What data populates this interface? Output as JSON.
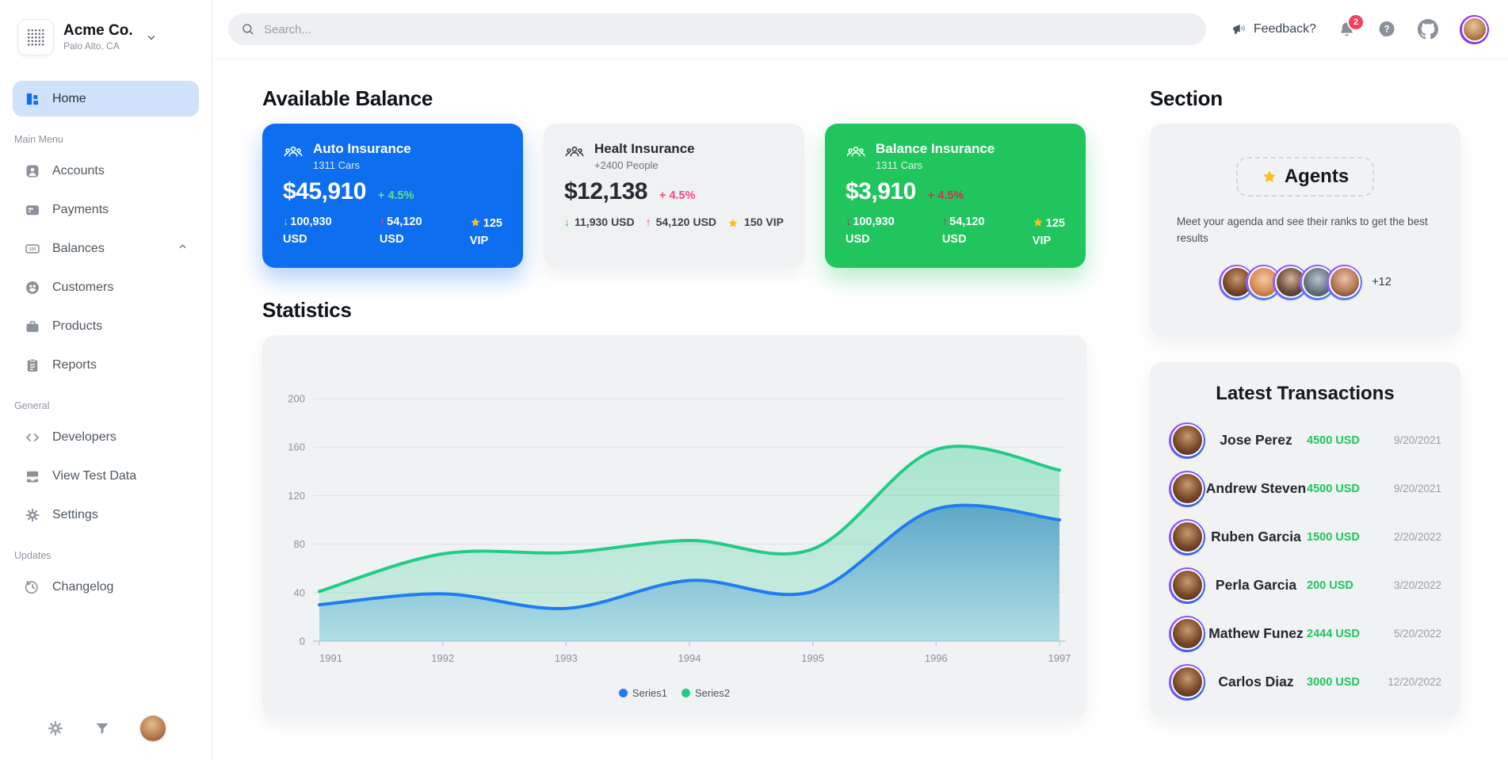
{
  "brand": {
    "name": "Acme Co.",
    "location": "Palo Alto, CA"
  },
  "topbar": {
    "search_placeholder": "Search...",
    "feedback_label": "Feedback?",
    "notification_count": "2"
  },
  "sidebar": {
    "home_label": "Home",
    "main_menu_label": "Main Menu",
    "general_label": "General",
    "updates_label": "Updates",
    "main_items": [
      "Accounts",
      "Payments",
      "Balances",
      "Customers",
      "Products",
      "Reports"
    ],
    "general_items": [
      "Developers",
      "View Test Data",
      "Settings"
    ],
    "updates_items": [
      "Changelog"
    ]
  },
  "glyphs": {
    "arrow_down": "↓",
    "arrow_up": "↑"
  },
  "balance": {
    "heading": "Available Balance",
    "cards": [
      {
        "title": "Auto Insurance",
        "subtitle": "1311 Cars",
        "amount": "$45,910",
        "pct": "+ 4.5%",
        "down_value": "100,930",
        "down_unit": "USD",
        "up_value": "54,120",
        "up_unit": "USD",
        "vip_value": "125",
        "vip_unit": "VIP"
      },
      {
        "title": "Healt Insurance",
        "subtitle": "+2400 People",
        "amount": "$12,138",
        "pct": "+ 4.5%",
        "down_value": "11,930",
        "down_unit": "USD",
        "up_value": "54,120",
        "up_unit": "USD",
        "vip_value": "150",
        "vip_unit": "VIP"
      },
      {
        "title": "Balance Insurance",
        "subtitle": "1311 Cars",
        "amount": "$3,910",
        "pct": "+ 4.5%",
        "down_value": "100,930",
        "down_unit": "USD",
        "up_value": "54,120",
        "up_unit": "USD",
        "vip_value": "125",
        "vip_unit": "VIP"
      }
    ]
  },
  "statistics": {
    "heading": "Statistics"
  },
  "chart_data": {
    "type": "area",
    "title": "Statistics",
    "x": [
      1991,
      1992,
      1993,
      1994,
      1995,
      1996,
      1997
    ],
    "series": [
      {
        "name": "Series1",
        "color": "#1e7df2",
        "values": [
          30,
          39,
          27,
          50,
          41,
          109,
          100
        ]
      },
      {
        "name": "Series2",
        "color": "#21cc87",
        "values": [
          41,
          72,
          73,
          83,
          76,
          158,
          141
        ]
      }
    ],
    "xlabel": "",
    "ylabel": "",
    "ylim": [
      0,
      200
    ],
    "yticks": [
      0,
      40,
      80,
      120,
      160,
      200
    ],
    "grid": true,
    "legend_position": "bottom"
  },
  "section": {
    "heading": "Section",
    "badge_title": "Agents",
    "description": "Meet your agenda and see their ranks to get the best results",
    "extra_count": "+12"
  },
  "transactions": {
    "title": "Latest Transactions",
    "rows": [
      {
        "name": "Jose Perez",
        "amount": "4500 USD",
        "date": "9/20/2021"
      },
      {
        "name": "Andrew Steven",
        "amount": "4500 USD",
        "date": "9/20/2021"
      },
      {
        "name": "Ruben Garcia",
        "amount": "1500 USD",
        "date": "2/20/2022"
      },
      {
        "name": "Perla Garcia",
        "amount": "200 USD",
        "date": "3/20/2022"
      },
      {
        "name": "Mathew Funez",
        "amount": "2444 USD",
        "date": "5/20/2022"
      },
      {
        "name": "Carlos Diaz",
        "amount": "3000 USD",
        "date": "12/20/2022"
      }
    ]
  },
  "colors": {
    "accent_blue": "#0e6ef0",
    "accent_green": "#21c55e",
    "accent_pink": "#f43f5e",
    "star_yellow": "#fbbf24",
    "amount_green": "#1fc65f",
    "pct_green_on_blue": "#5fe08d",
    "pct_pink_on_light": "#f54b7e",
    "pct_red_on_green": "#c13a52"
  }
}
